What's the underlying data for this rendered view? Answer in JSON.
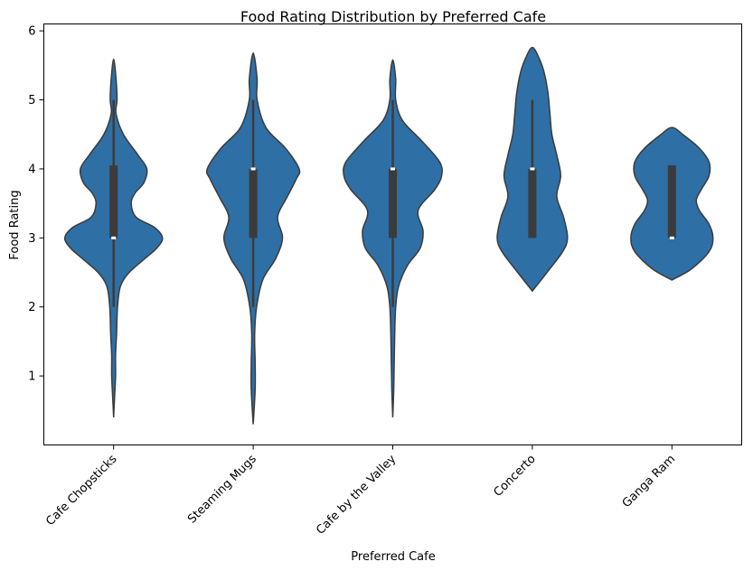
{
  "chart_data": {
    "type": "violin",
    "title": "Food Rating Distribution by Preferred Cafe",
    "xlabel": "Preferred Cafe",
    "ylabel": "Food Rating",
    "ylim": [
      0.0,
      6.1
    ],
    "yticks": [
      1,
      2,
      3,
      4,
      5,
      6
    ],
    "grid": false,
    "fill_color": "#2e6fa6",
    "edge_color": "#3b3b3b",
    "categories": [
      "Cafe Chopsticks",
      "Steaming Mugs",
      "Cafe by the Valley",
      "Concerto",
      "Ganga Ram"
    ],
    "violins": [
      {
        "category": "Cafe Chopsticks",
        "min": 2.0,
        "q1": 3.0,
        "median": 3.0,
        "q3": 4.05,
        "max": 5.0,
        "density": [
          [
            0.4,
            0.0
          ],
          [
            0.7,
            0.02
          ],
          [
            1.0,
            0.04
          ],
          [
            1.3,
            0.04
          ],
          [
            1.6,
            0.06
          ],
          [
            2.0,
            0.08
          ],
          [
            2.3,
            0.14
          ],
          [
            2.5,
            0.32
          ],
          [
            2.7,
            0.64
          ],
          [
            2.85,
            0.88
          ],
          [
            3.0,
            1.0
          ],
          [
            3.15,
            0.84
          ],
          [
            3.3,
            0.46
          ],
          [
            3.5,
            0.36
          ],
          [
            3.65,
            0.44
          ],
          [
            3.8,
            0.62
          ],
          [
            4.0,
            0.68
          ],
          [
            4.2,
            0.5
          ],
          [
            4.5,
            0.2
          ],
          [
            4.8,
            0.05
          ],
          [
            5.0,
            0.07
          ],
          [
            5.3,
            0.05
          ],
          [
            5.59,
            0.0
          ]
        ]
      },
      {
        "category": "Steaming Mugs",
        "min": 2.0,
        "q1": 3.0,
        "median": 4.0,
        "q3": 4.0,
        "max": 5.0,
        "density": [
          [
            0.3,
            0.0
          ],
          [
            0.8,
            0.04
          ],
          [
            1.2,
            0.04
          ],
          [
            1.6,
            0.03
          ],
          [
            2.0,
            0.07
          ],
          [
            2.4,
            0.2
          ],
          [
            2.7,
            0.46
          ],
          [
            3.0,
            0.6
          ],
          [
            3.3,
            0.5
          ],
          [
            3.6,
            0.7
          ],
          [
            3.85,
            0.88
          ],
          [
            4.0,
            0.94
          ],
          [
            4.3,
            0.66
          ],
          [
            4.6,
            0.26
          ],
          [
            5.0,
            0.08
          ],
          [
            5.3,
            0.08
          ],
          [
            5.68,
            0.0
          ]
        ]
      },
      {
        "category": "Cafe by the Valley",
        "min": 2.0,
        "q1": 3.0,
        "median": 4.0,
        "q3": 4.0,
        "max": 5.0,
        "density": [
          [
            0.4,
            0.0
          ],
          [
            0.8,
            0.02
          ],
          [
            1.2,
            0.03
          ],
          [
            1.6,
            0.04
          ],
          [
            2.0,
            0.06
          ],
          [
            2.3,
            0.12
          ],
          [
            2.6,
            0.3
          ],
          [
            2.85,
            0.56
          ],
          [
            3.1,
            0.62
          ],
          [
            3.4,
            0.52
          ],
          [
            3.7,
            0.86
          ],
          [
            3.9,
            1.0
          ],
          [
            4.1,
            0.96
          ],
          [
            4.4,
            0.6
          ],
          [
            4.7,
            0.2
          ],
          [
            5.0,
            0.06
          ],
          [
            5.3,
            0.06
          ],
          [
            5.58,
            0.0
          ]
        ]
      },
      {
        "category": "Concerto",
        "min": 3.0,
        "q1": 3.0,
        "median": 4.0,
        "q3": 4.0,
        "max": 5.0,
        "density": [
          [
            2.23,
            0.0
          ],
          [
            2.5,
            0.3
          ],
          [
            2.8,
            0.62
          ],
          [
            3.0,
            0.72
          ],
          [
            3.3,
            0.64
          ],
          [
            3.6,
            0.5
          ],
          [
            3.9,
            0.58
          ],
          [
            4.2,
            0.5
          ],
          [
            4.5,
            0.4
          ],
          [
            4.8,
            0.36
          ],
          [
            5.1,
            0.32
          ],
          [
            5.4,
            0.24
          ],
          [
            5.6,
            0.14
          ],
          [
            5.76,
            0.0
          ]
        ]
      },
      {
        "category": "Ganga Ram",
        "min": 3.0,
        "q1": 3.0,
        "median": 3.0,
        "q3": 4.05,
        "max": 4.05,
        "density": [
          [
            2.39,
            0.0
          ],
          [
            2.55,
            0.4
          ],
          [
            2.8,
            0.76
          ],
          [
            3.0,
            0.84
          ],
          [
            3.2,
            0.76
          ],
          [
            3.4,
            0.56
          ],
          [
            3.55,
            0.5
          ],
          [
            3.7,
            0.6
          ],
          [
            3.9,
            0.76
          ],
          [
            4.1,
            0.76
          ],
          [
            4.3,
            0.56
          ],
          [
            4.5,
            0.22
          ],
          [
            4.6,
            0.0
          ]
        ]
      }
    ]
  }
}
